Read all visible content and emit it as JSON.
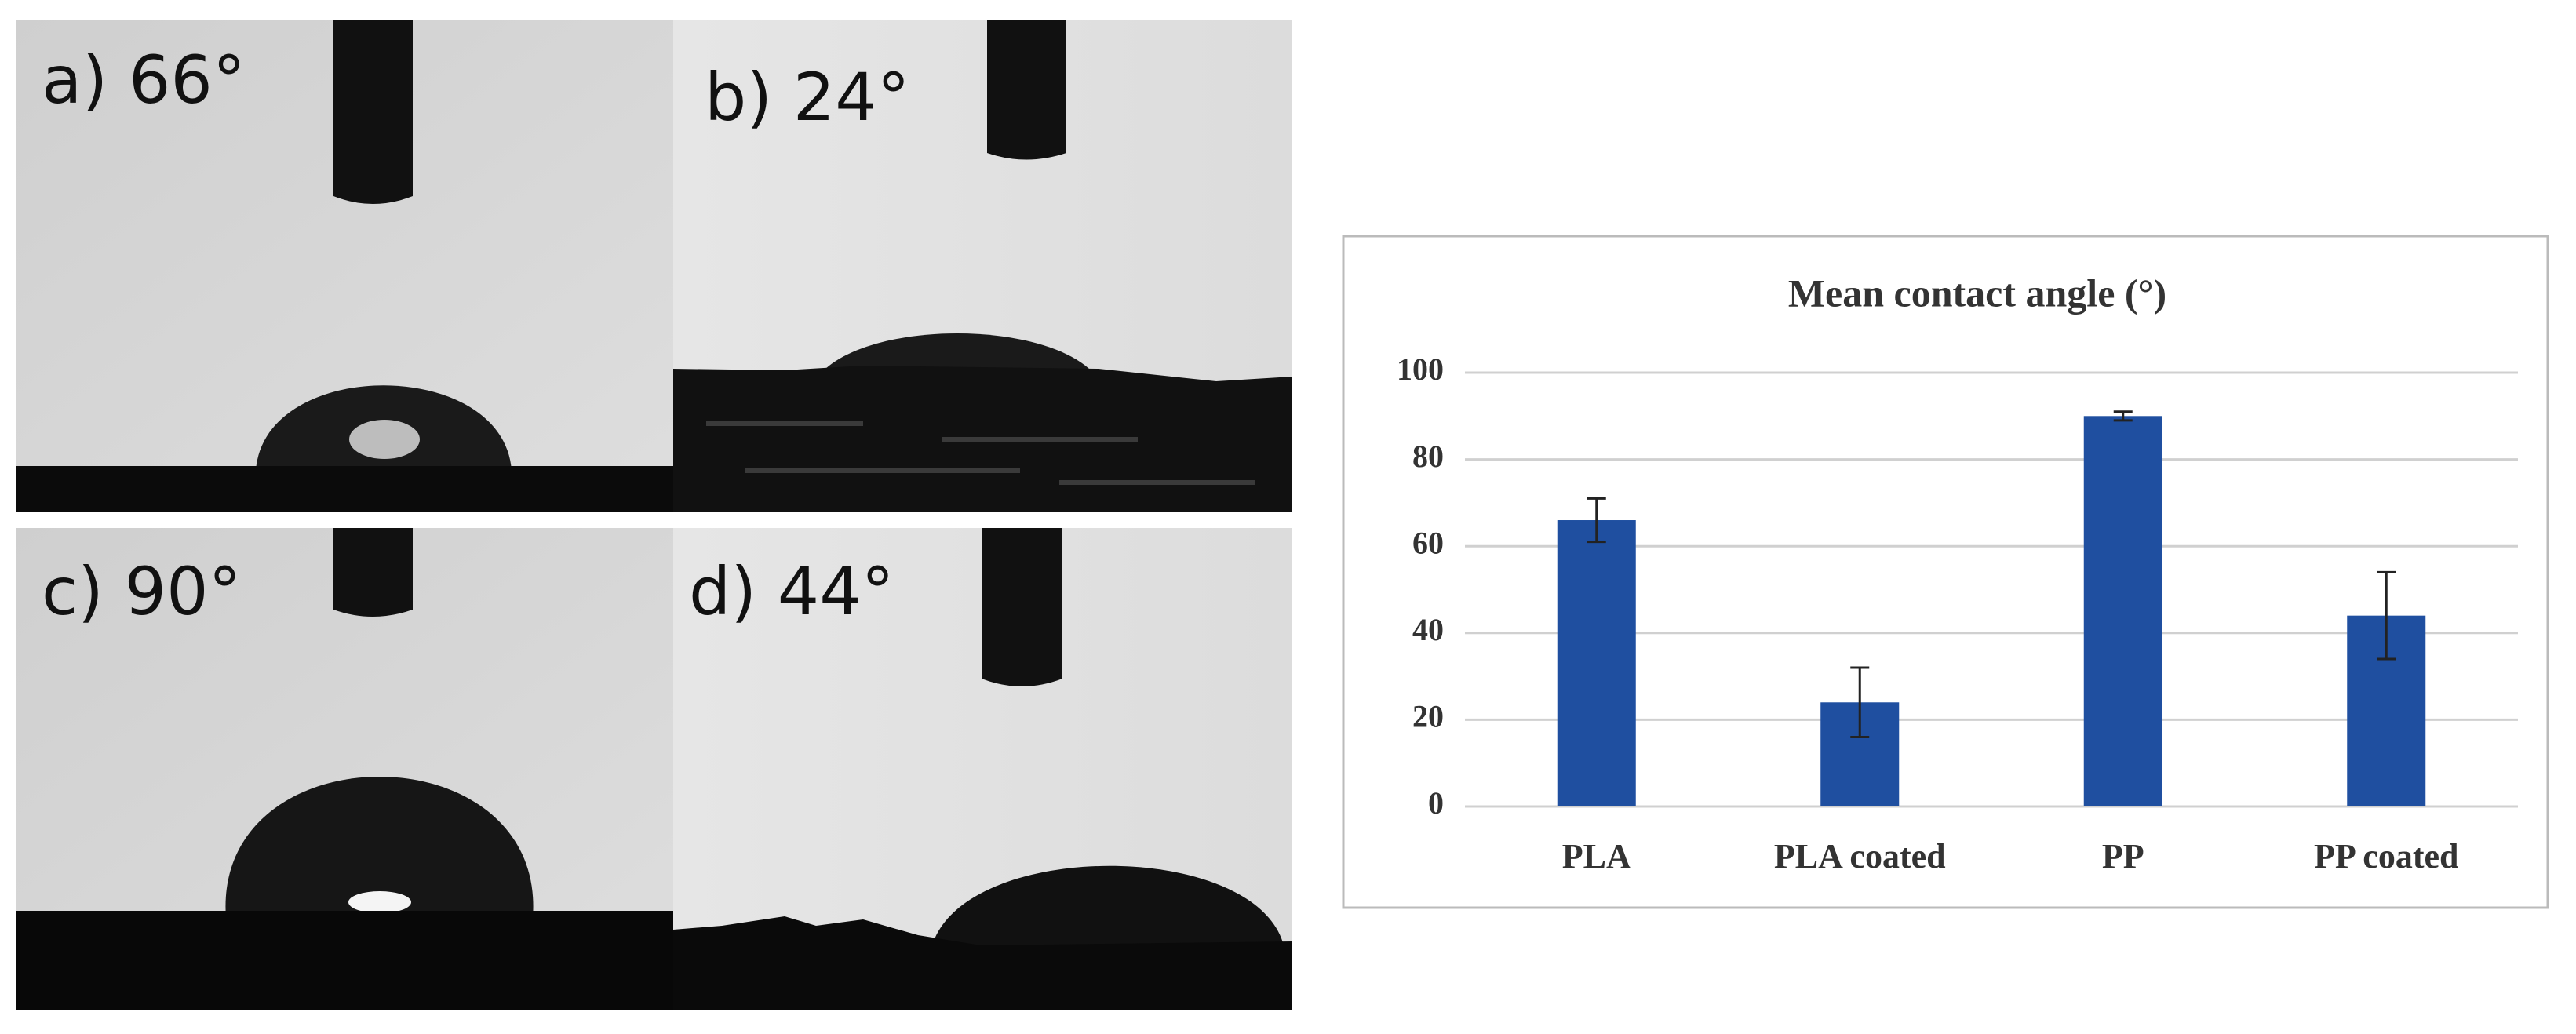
{
  "panels": [
    {
      "label": "a) 66°"
    },
    {
      "label": "b) 24°"
    },
    {
      "label": "c) 90°"
    },
    {
      "label": "d) 44°"
    }
  ],
  "chart_data": {
    "type": "bar",
    "title": "Mean contact angle (°)",
    "categories": [
      "PLA",
      "PLA coated",
      "PP",
      "PP coated"
    ],
    "values": [
      66,
      24,
      90,
      44
    ],
    "errors": [
      5,
      8,
      1,
      10
    ],
    "color": "#1f4fa0",
    "ylim": [
      0,
      100
    ],
    "yticks": [
      0,
      20,
      40,
      60,
      80,
      100
    ],
    "grid": true
  }
}
